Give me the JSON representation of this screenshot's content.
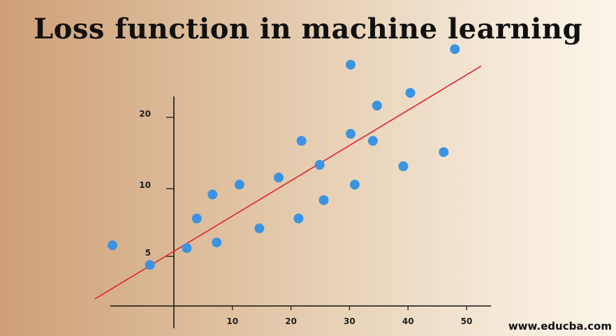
{
  "page": {
    "title": "Loss function in machine learning",
    "watermark": "www.educba.com"
  },
  "chart_data": {
    "type": "scatter",
    "title": "Loss function in machine learning",
    "xlabel": "",
    "ylabel": "",
    "x_ticks": [
      10,
      20,
      30,
      40,
      50
    ],
    "y_ticks": [
      5,
      10,
      20
    ],
    "xlim": [
      -10.5,
      52.5
    ],
    "grid": false,
    "legend": "none",
    "point_color": "#3b94e2",
    "line_color": "#e0232e",
    "points": [
      {
        "x": -10.5,
        "y": 4.3
      },
      {
        "x": -4.1,
        "y": 2.9
      },
      {
        "x": 2.2,
        "y": 4.1
      },
      {
        "x": 3.9,
        "y": 6.2
      },
      {
        "x": 6.6,
        "y": 7.9
      },
      {
        "x": 7.3,
        "y": 4.5
      },
      {
        "x": 11.2,
        "y": 8.6
      },
      {
        "x": 14.6,
        "y": 5.5
      },
      {
        "x": 17.9,
        "y": 9.1
      },
      {
        "x": 21.3,
        "y": 6.2
      },
      {
        "x": 21.8,
        "y": 11.7
      },
      {
        "x": 24.9,
        "y": 10.0
      },
      {
        "x": 25.6,
        "y": 7.5
      },
      {
        "x": 30.2,
        "y": 17.1
      },
      {
        "x": 30.2,
        "y": 12.2
      },
      {
        "x": 30.9,
        "y": 8.6
      },
      {
        "x": 34.0,
        "y": 11.7
      },
      {
        "x": 34.7,
        "y": 14.2
      },
      {
        "x": 39.2,
        "y": 9.9
      },
      {
        "x": 40.4,
        "y": 15.1
      },
      {
        "x": 46.1,
        "y": 10.9
      },
      {
        "x": 48.0,
        "y": 18.2
      }
    ],
    "fit_line": {
      "x1": -13.5,
      "y1": 0.5,
      "x2": 52.5,
      "y2": 17.0
    }
  }
}
